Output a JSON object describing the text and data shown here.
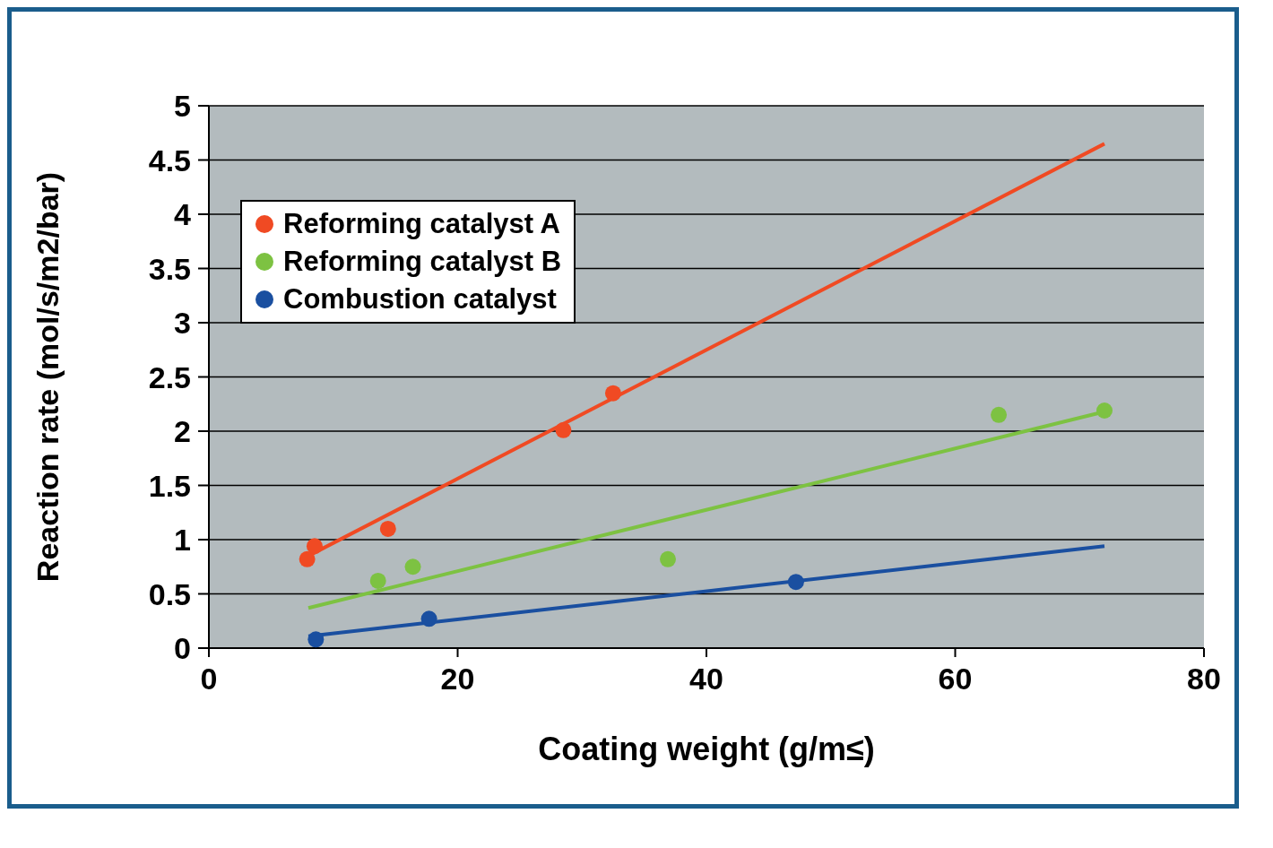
{
  "chart_data": {
    "type": "scatter",
    "xlabel": "Coating weight (g/m≤)",
    "ylabel": "Reaction rate (mol/s/m2/bar)",
    "xlim": [
      0,
      80
    ],
    "xticks": [
      0,
      20,
      40,
      60,
      80
    ],
    "ylim": [
      0,
      5
    ],
    "yticks": [
      0,
      0.5,
      1,
      1.5,
      2,
      2.5,
      3,
      3.5,
      4,
      4.5,
      5
    ],
    "grid": "y",
    "legend": "top left",
    "marker": "circle",
    "series": [
      {
        "name": "Reforming catalyst A",
        "color": "#f04a23",
        "x": [
          7.9,
          8.5,
          14.4,
          28.5,
          32.5
        ],
        "values": [
          0.82,
          0.94,
          1.1,
          2.01,
          2.35
        ]
      },
      {
        "name": "Reforming catalyst B",
        "color": "#7dc242",
        "x": [
          13.6,
          16.4,
          36.9,
          63.5,
          72
        ],
        "values": [
          0.62,
          0.75,
          0.82,
          2.15,
          2.19
        ]
      },
      {
        "name": "Combustion catalyst",
        "color": "#1a4fa0",
        "x": [
          8.6,
          17.7,
          47.2
        ],
        "values": [
          0.08,
          0.27,
          0.61
        ]
      },
      {
        "type": "line",
        "marker": "none",
        "color": "#f04a23",
        "x": [
          8,
          72
        ],
        "values": [
          0.85,
          4.65
        ]
      },
      {
        "type": "line",
        "marker": "none",
        "color": "#7dc242",
        "x": [
          8,
          72
        ],
        "values": [
          0.37,
          2.18
        ]
      },
      {
        "type": "line",
        "marker": "none",
        "color": "#1a4fa0",
        "x": [
          8,
          72
        ],
        "values": [
          0.11,
          0.94
        ]
      }
    ]
  }
}
